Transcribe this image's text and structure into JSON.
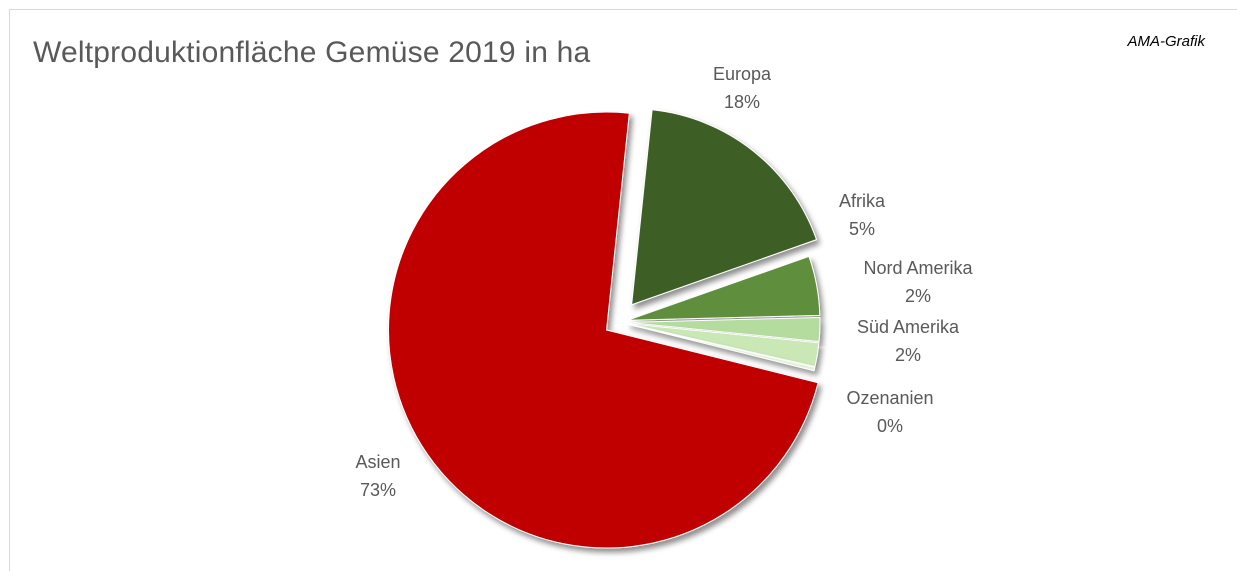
{
  "chart_data": {
    "type": "pie",
    "title": "Weltproduktionfläche Gemüse 2019 in ha",
    "source_note": "AMA-Grafik",
    "slices": [
      {
        "label": "Asien",
        "percent_label": "73%",
        "value": 73,
        "color": "#c00000"
      },
      {
        "label": "Europa",
        "percent_label": "18%",
        "value": 18,
        "color": "#3e5f28"
      },
      {
        "label": "Afrika",
        "percent_label": "5%",
        "value": 5,
        "color": "#5e8f3c"
      },
      {
        "label": "Nord Amerika",
        "percent_label": "2%",
        "value": 2,
        "color": "#b4dc9e"
      },
      {
        "label": "Süd Amerika",
        "percent_label": "2%",
        "value": 2,
        "color": "#c9e8b6"
      },
      {
        "label": "Ozenanien",
        "percent_label": "0%",
        "value": 0.3,
        "color": "#e2f2d6"
      }
    ]
  }
}
